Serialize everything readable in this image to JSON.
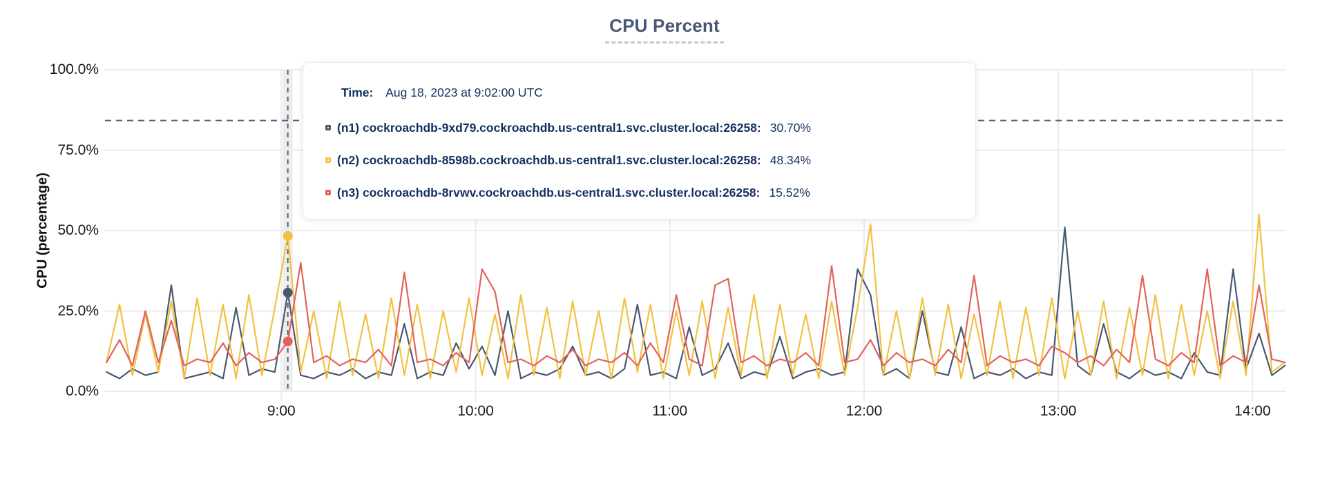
{
  "header": {
    "title": "CPU Percent"
  },
  "y_axis": {
    "title": "CPU (percentage)",
    "ticks": [
      {
        "label": "100.0%",
        "value": 100
      },
      {
        "label": "75.0%",
        "value": 75
      },
      {
        "label": "50.0%",
        "value": 50
      },
      {
        "label": "25.0%",
        "value": 25
      },
      {
        "label": "0.0%",
        "value": 0
      }
    ]
  },
  "x_axis": {
    "ticks": [
      {
        "label": "9:00",
        "hour": 9
      },
      {
        "label": "10:00",
        "hour": 10
      },
      {
        "label": "11:00",
        "hour": 11
      },
      {
        "label": "12:00",
        "hour": 12
      },
      {
        "label": "13:00",
        "hour": 13
      },
      {
        "label": "14:00",
        "hour": 14
      }
    ]
  },
  "tooltip": {
    "time_label": "Time:",
    "time_value": "Aug 18, 2023 at 9:02:00 UTC",
    "rows": [
      {
        "id": "n1",
        "label": "(n1) cockroachdb-9xd79.cockroachdb.us-central1.svc.cluster.local:26258:",
        "value": "30.70%",
        "color": "#475872"
      },
      {
        "id": "n2",
        "label": "(n2) cockroachdb-8598b.cockroachdb.us-central1.svc.cluster.local:26258:",
        "value": "48.34%",
        "color": "#f2c140"
      },
      {
        "id": "n3",
        "label": "(n3) cockroachdb-8rvwv.cockroachdb.us-central1.svc.cluster.local:26258:",
        "value": "15.52%",
        "color": "#e2625a"
      }
    ]
  },
  "colors": {
    "grid": "#ebebeb",
    "hover_band": "#ededed",
    "crosshair": "#4e6377",
    "threshold": "#4e6377",
    "title": "#475872",
    "tooltip_text": "#14305f"
  },
  "chart_data": {
    "type": "line",
    "title": "CPU Percent",
    "xlabel": "",
    "ylabel": "CPU (percentage)",
    "ylim": [
      0,
      100
    ],
    "grid": true,
    "legend_position": "tooltip-overlay",
    "x_tick_hours": [
      9,
      10,
      11,
      12,
      13,
      14
    ],
    "x_start_hour": 8.1,
    "x_step_minutes": 4,
    "threshold_pct": 84.2,
    "hover": {
      "index": 14,
      "time": "Aug 18, 2023 at 9:02:00 UTC"
    },
    "series": [
      {
        "name": "(n1) cockroachdb-9xd79.cockroachdb.us-central1.svc.cluster.local:26258",
        "color": "#475872",
        "hover_value": 30.7,
        "values": [
          6,
          4,
          7,
          5,
          6,
          33,
          4,
          5,
          6,
          4,
          26,
          5,
          7,
          6,
          30.7,
          5,
          4,
          6,
          5,
          7,
          4,
          6,
          5,
          21,
          4,
          6,
          5,
          15,
          7,
          14,
          5,
          25,
          4,
          6,
          5,
          7,
          14,
          5,
          6,
          4,
          7,
          27,
          5,
          6,
          4,
          20,
          5,
          7,
          15,
          4,
          6,
          5,
          17,
          4,
          6,
          7,
          5,
          6,
          38,
          30,
          5,
          7,
          4,
          25,
          6,
          5,
          20,
          4,
          6,
          5,
          7,
          4,
          6,
          5,
          51,
          8,
          5,
          21,
          6,
          4,
          7,
          5,
          6,
          4,
          12,
          6,
          5,
          38,
          7,
          18,
          5,
          8
        ]
      },
      {
        "name": "(n2) cockroachdb-8598b.cockroachdb.us-central1.svc.cluster.local:26258",
        "color": "#f2c140",
        "hover_value": 48.34,
        "values": [
          9,
          27,
          5,
          24,
          6,
          28,
          4,
          29,
          5,
          27,
          4,
          30,
          5,
          26,
          48.34,
          6,
          25,
          4,
          28,
          5,
          24,
          4,
          29,
          5,
          27,
          4,
          25,
          6,
          29,
          5,
          24,
          4,
          30,
          5,
          26,
          4,
          28,
          5,
          25,
          4,
          29,
          6,
          27,
          4,
          25,
          5,
          28,
          4,
          26,
          5,
          30,
          4,
          27,
          5,
          24,
          4,
          28,
          5,
          26,
          52,
          5,
          25,
          4,
          29,
          5,
          27,
          4,
          24,
          5,
          28,
          4,
          26,
          5,
          29,
          4,
          25,
          5,
          28,
          4,
          26,
          5,
          30,
          4,
          27,
          5,
          25,
          4,
          28,
          5,
          55,
          6,
          9
        ]
      },
      {
        "name": "(n3) cockroachdb-8rvwv.cockroachdb.us-central1.svc.cluster.local:26258",
        "color": "#e2625a",
        "hover_value": 15.52,
        "values": [
          9,
          16,
          8,
          25,
          9,
          22,
          8,
          10,
          9,
          15,
          8,
          12,
          9,
          10,
          15.52,
          40,
          9,
          11,
          8,
          10,
          9,
          13,
          8,
          37,
          9,
          10,
          8,
          12,
          9,
          38,
          31,
          9,
          10,
          8,
          11,
          9,
          13,
          8,
          10,
          9,
          12,
          8,
          15,
          9,
          30,
          10,
          8,
          33,
          35,
          9,
          11,
          8,
          10,
          9,
          12,
          8,
          39,
          9,
          10,
          16,
          8,
          12,
          9,
          10,
          8,
          13,
          9,
          36,
          8,
          11,
          9,
          10,
          8,
          14,
          12,
          9,
          11,
          8,
          13,
          9,
          36,
          10,
          8,
          12,
          9,
          38,
          8,
          11,
          9,
          33,
          10,
          9
        ]
      }
    ]
  }
}
